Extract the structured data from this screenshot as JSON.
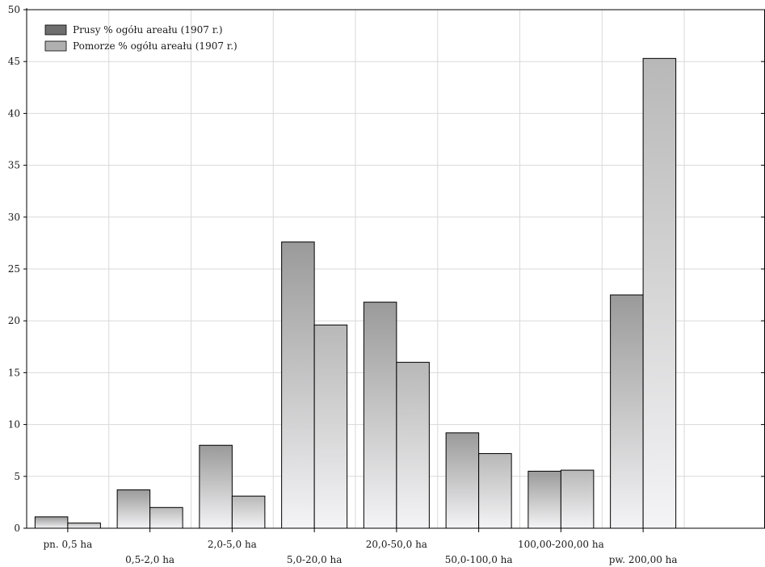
{
  "chart_data": {
    "type": "bar",
    "categories": [
      "pn. 0,5 ha",
      "0,5-2,0 ha",
      "2,0-5,0 ha",
      "5,0-20,0 ha",
      "20,0-50,0 ha",
      "50,0-100,0 ha",
      "100,00-200,00 ha",
      "pw. 200,00 ha"
    ],
    "series": [
      {
        "name": "Prusy % ogółu areału (1907 r.)",
        "values": [
          1.1,
          3.7,
          8.0,
          27.6,
          21.8,
          9.2,
          5.5,
          22.5
        ]
      },
      {
        "name": "Pomorze % ogółu areału (1907 r.)",
        "values": [
          0.5,
          2.0,
          3.1,
          19.6,
          16.0,
          7.2,
          5.6,
          45.3
        ]
      }
    ],
    "ylim": [
      0,
      50
    ],
    "yticks": [
      "0",
      "5",
      "10",
      "15",
      "20",
      "25",
      "30",
      "35",
      "40",
      "45",
      "50"
    ],
    "grid": true,
    "legend_position": "top-left",
    "colors": {
      "series1_legend": "#6e6e6e",
      "series2_legend": "#b0b0b0",
      "series1_top": "#9a9a9a",
      "series2_top": "#b8b8b8",
      "bar_bottom": "#f4f4f6",
      "grid": "#d9d9d9",
      "axis": "#000000"
    }
  }
}
